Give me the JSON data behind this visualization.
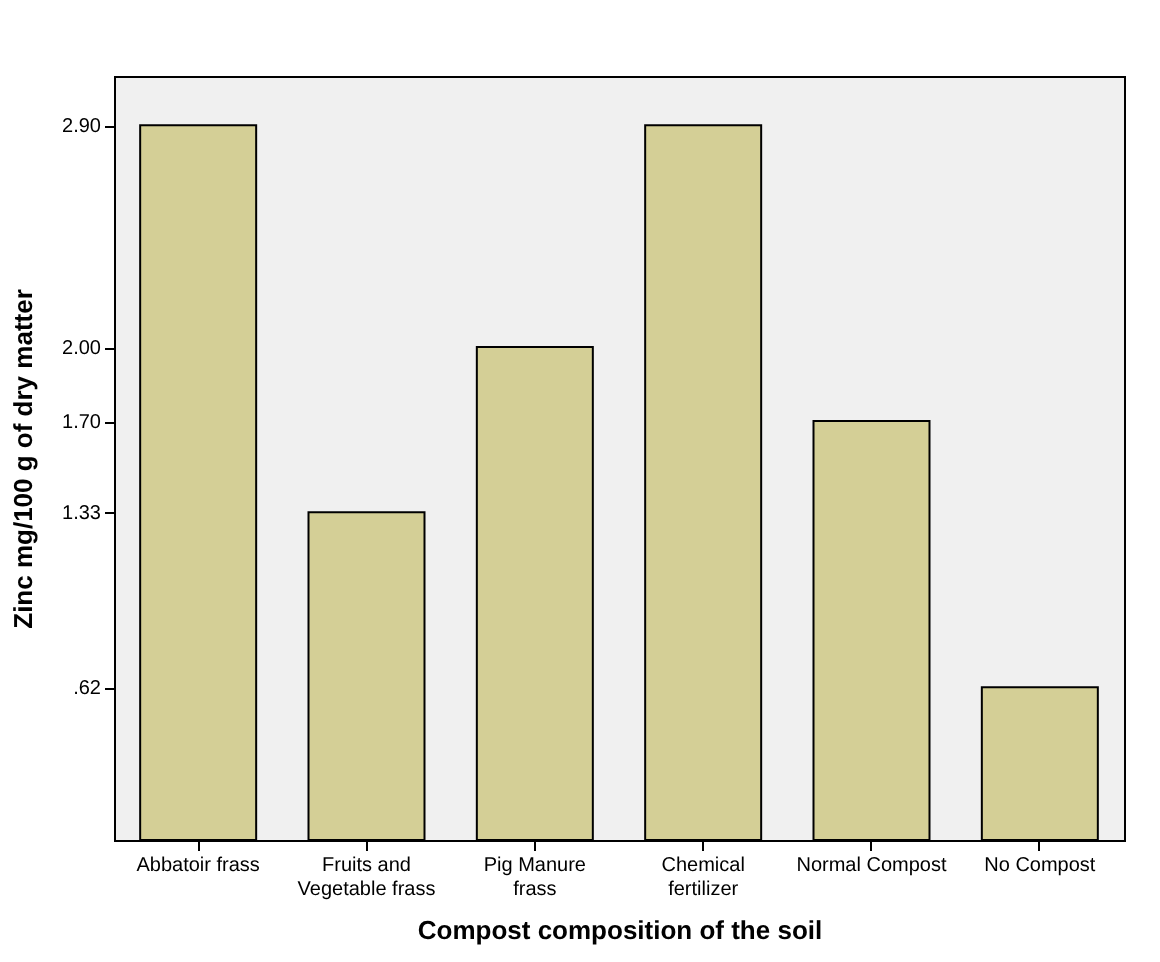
{
  "chart_data": {
    "type": "bar",
    "xlabel": "Compost composition of the soil",
    "ylabel": "Zinc mg/100 g of dry matter",
    "categories": [
      "Abbatoir frass",
      "Fruits and Vegetable frass",
      "Pig Manure frass",
      "Chemical fertilizer",
      "Normal Compost",
      "No Compost"
    ],
    "values": [
      2.9,
      1.33,
      2.0,
      2.9,
      1.7,
      0.62
    ],
    "color": "#d4cf96",
    "ylim": [
      0,
      3.1
    ],
    "yticks": [
      {
        "value": 0.62,
        "label": ".62"
      },
      {
        "value": 1.33,
        "label": "1.33"
      },
      {
        "value": 1.7,
        "label": "1.70"
      },
      {
        "value": 2.0,
        "label": "2.00"
      },
      {
        "value": 2.9,
        "label": "2.90"
      }
    ],
    "grid": false
  }
}
